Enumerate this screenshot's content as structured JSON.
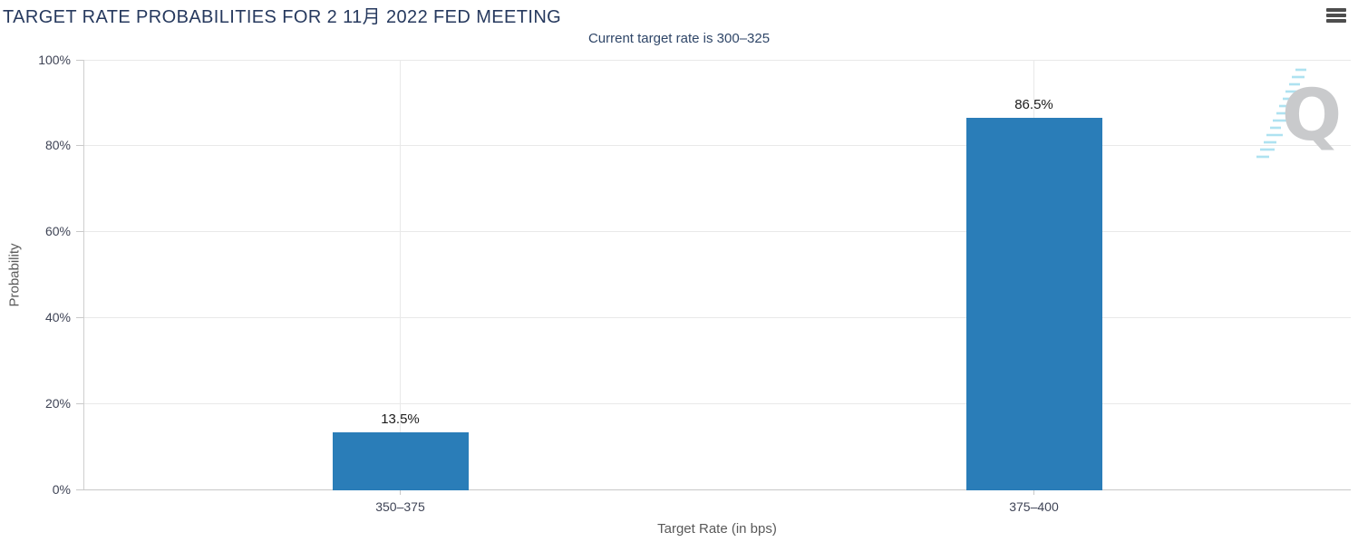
{
  "header": {
    "title": "TARGET RATE PROBABILITIES FOR 2 11月 2022 FED MEETING"
  },
  "icons": {
    "menu": "hamburger-menu",
    "watermark": "q-logo"
  },
  "chart_data": {
    "type": "bar",
    "title": "TARGET RATE PROBABILITIES FOR 2 11月 2022 FED MEETING",
    "subtitle": "Current target rate is 300–325",
    "categories": [
      "350–375",
      "375–400"
    ],
    "values": [
      13.5,
      86.5
    ],
    "value_labels": [
      "13.5%",
      "86.5%"
    ],
    "xlabel": "Target Rate (in bps)",
    "ylabel": "Probability",
    "ylim": [
      0,
      100
    ],
    "yticks": [
      "0%",
      "20%",
      "40%",
      "60%",
      "80%",
      "100%"
    ],
    "grid": true,
    "legend": "none",
    "bar_color": "#2a7db8"
  },
  "colors": {
    "bar": "#2a7db8",
    "title_text": "#26395e",
    "subtitle_text": "#2f4668",
    "tick_text": "#3f4456",
    "axis_title_text": "#595959",
    "gridline": "#e9e9e9",
    "axis_line": "#c7c7c7",
    "watermark_gray": "#c9cacc",
    "watermark_cyan": "#aee2f1"
  }
}
